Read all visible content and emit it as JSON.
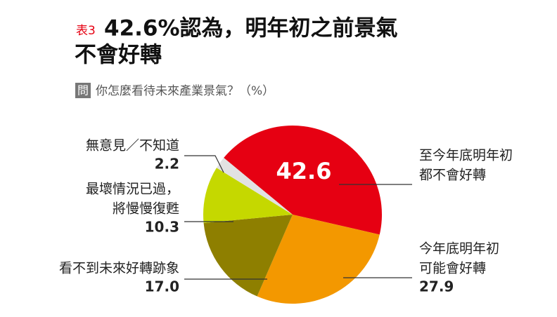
{
  "chart_data": {
    "type": "pie",
    "title_tag": "表3",
    "title": [
      "42.6%認為，明年初之前景氣",
      "不會好轉"
    ],
    "question_tag": "問",
    "subtitle": "你怎麼看待未來產業景氣？（%）",
    "categories": [
      [
        "至今年底明年初",
        "都不會好轉"
      ],
      [
        "今年底明年初",
        "可能會好轉"
      ],
      [
        "看不到未來好轉跡象"
      ],
      [
        "最壞情況已過，",
        "將慢慢復甦"
      ],
      [
        "無意見／不知道"
      ]
    ],
    "values": [
      42.6,
      27.9,
      17.0,
      10.3,
      2.2
    ],
    "value_labels": [
      "42.6",
      "27.9",
      "17.0",
      "10.3",
      "2.2"
    ],
    "colors": [
      "#e60012",
      "#f39800",
      "#8e7f00",
      "#c5d800",
      "#e2e2e2"
    ]
  }
}
